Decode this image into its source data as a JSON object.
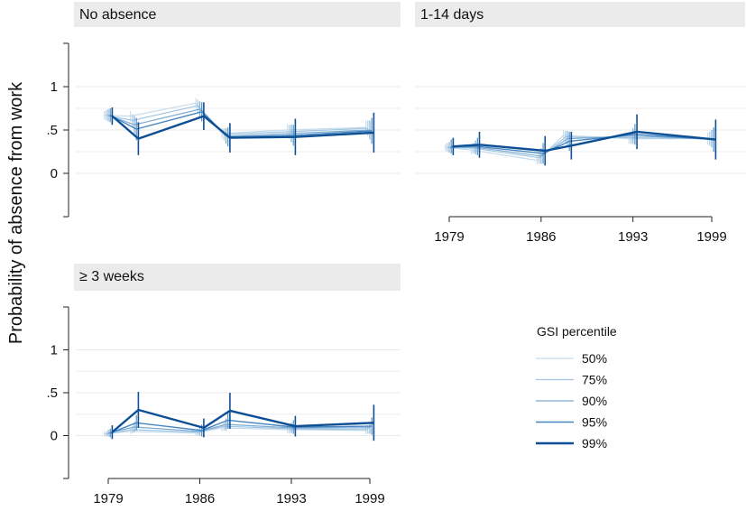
{
  "chart_data": {
    "type": "line",
    "ylabel": "Probability of absence from work",
    "x_ticks": [
      1979,
      1986,
      1993,
      1999
    ],
    "y_tick_labels": [
      "0",
      ".5",
      "1"
    ],
    "y_tick_values": [
      0,
      0.5,
      1
    ],
    "ylim": [
      -0.5,
      1.5
    ],
    "xlim": [
      1979,
      1999
    ],
    "legend": {
      "title": "GSI percentile",
      "placement": "bottom-right",
      "entries": [
        "50%",
        "75%",
        "90%",
        "95%",
        "99%"
      ]
    },
    "series_colors": [
      "#c5dcee",
      "#a2c6e2",
      "#7aabd3",
      "#4785c0",
      "#0d4f94"
    ],
    "panels": [
      {
        "title": "No absence",
        "x": [
          1979,
          1981,
          1986,
          1988,
          1993,
          1999
        ],
        "series": [
          {
            "name": "50%",
            "values": [
              0.67,
              0.66,
              0.81,
              0.46,
              0.5,
              0.53
            ],
            "ci": [
              0.05,
              0.06,
              0.06,
              0.06,
              0.07,
              0.08
            ]
          },
          {
            "name": "75%",
            "values": [
              0.67,
              0.61,
              0.78,
              0.45,
              0.48,
              0.52
            ],
            "ci": [
              0.06,
              0.07,
              0.07,
              0.07,
              0.08,
              0.09
            ]
          },
          {
            "name": "90%",
            "values": [
              0.67,
              0.56,
              0.74,
              0.43,
              0.46,
              0.5
            ],
            "ci": [
              0.07,
              0.1,
              0.09,
              0.09,
              0.1,
              0.11
            ]
          },
          {
            "name": "95%",
            "values": [
              0.67,
              0.51,
              0.71,
              0.42,
              0.44,
              0.49
            ],
            "ci": [
              0.08,
              0.13,
              0.11,
              0.11,
              0.12,
              0.15
            ]
          },
          {
            "name": "99%",
            "values": [
              0.66,
              0.4,
              0.66,
              0.41,
              0.42,
              0.47
            ],
            "ci": [
              0.1,
              0.19,
              0.16,
              0.17,
              0.21,
              0.23
            ]
          }
        ]
      },
      {
        "title": "1-14 days",
        "x": [
          1979,
          1981,
          1986,
          1988,
          1993,
          1999
        ],
        "series": [
          {
            "name": "50%",
            "values": [
              0.3,
              0.27,
              0.15,
              0.44,
              0.4,
              0.4
            ],
            "ci": [
              0.04,
              0.05,
              0.05,
              0.06,
              0.06,
              0.07
            ]
          },
          {
            "name": "75%",
            "values": [
              0.3,
              0.29,
              0.18,
              0.42,
              0.41,
              0.4
            ],
            "ci": [
              0.05,
              0.06,
              0.07,
              0.07,
              0.07,
              0.08
            ]
          },
          {
            "name": "90%",
            "values": [
              0.3,
              0.3,
              0.2,
              0.4,
              0.43,
              0.4
            ],
            "ci": [
              0.06,
              0.08,
              0.09,
              0.09,
              0.09,
              0.1
            ]
          },
          {
            "name": "95%",
            "values": [
              0.31,
              0.31,
              0.23,
              0.37,
              0.45,
              0.39
            ],
            "ci": [
              0.08,
              0.1,
              0.12,
              0.11,
              0.12,
              0.14
            ]
          },
          {
            "name": "99%",
            "values": [
              0.31,
              0.33,
              0.26,
              0.32,
              0.48,
              0.39
            ],
            "ci": [
              0.1,
              0.15,
              0.17,
              0.16,
              0.2,
              0.23
            ]
          }
        ]
      },
      {
        "title": "≥ 3 weeks",
        "x": [
          1979,
          1981,
          1986,
          1988,
          1993,
          1999
        ],
        "series": [
          {
            "name": "50%",
            "values": [
              0.02,
              0.05,
              0.03,
              0.09,
              0.07,
              0.06
            ],
            "ci": [
              0.02,
              0.03,
              0.03,
              0.04,
              0.04,
              0.04
            ]
          },
          {
            "name": "75%",
            "values": [
              0.02,
              0.07,
              0.04,
              0.11,
              0.08,
              0.07
            ],
            "ci": [
              0.03,
              0.04,
              0.04,
              0.05,
              0.05,
              0.05
            ]
          },
          {
            "name": "90%",
            "values": [
              0.03,
              0.1,
              0.05,
              0.13,
              0.09,
              0.09
            ],
            "ci": [
              0.04,
              0.06,
              0.05,
              0.07,
              0.06,
              0.07
            ]
          },
          {
            "name": "95%",
            "values": [
              0.03,
              0.15,
              0.06,
              0.18,
              0.1,
              0.11
            ],
            "ci": [
              0.05,
              0.09,
              0.07,
              0.1,
              0.08,
              0.1
            ]
          },
          {
            "name": "99%",
            "values": [
              0.04,
              0.3,
              0.09,
              0.29,
              0.11,
              0.15
            ],
            "ci": [
              0.08,
              0.21,
              0.11,
              0.21,
              0.12,
              0.21
            ]
          }
        ]
      }
    ]
  }
}
